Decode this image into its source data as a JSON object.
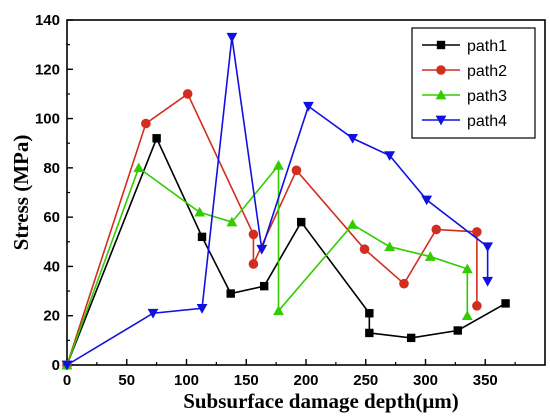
{
  "chart_data": {
    "type": "line",
    "title": "",
    "xlabel": "Subsurface damage depth(μm)",
    "ylabel": "Stress (MPa)",
    "xlim": [
      0,
      400
    ],
    "ylim": [
      0,
      140
    ],
    "xticks": [
      0,
      50,
      100,
      150,
      200,
      250,
      300,
      350
    ],
    "yticks": [
      0,
      20,
      40,
      60,
      80,
      100,
      120,
      140
    ],
    "grid": false,
    "legend_position": "top-right",
    "series": [
      {
        "name": "path1",
        "color": "#000000",
        "marker": "square",
        "points": [
          [
            0,
            0
          ],
          [
            75,
            92
          ],
          [
            113,
            52
          ],
          [
            137,
            29
          ],
          [
            165,
            32
          ],
          [
            196,
            58
          ],
          [
            253,
            21
          ],
          [
            253,
            13
          ],
          [
            288,
            11
          ],
          [
            327,
            14
          ],
          [
            367,
            25
          ]
        ]
      },
      {
        "name": "path2",
        "color": "#d22d1e",
        "marker": "circle",
        "points": [
          [
            0,
            0
          ],
          [
            66,
            98
          ],
          [
            101,
            110
          ],
          [
            156,
            53
          ],
          [
            156,
            41
          ],
          [
            192,
            79
          ],
          [
            249,
            47
          ],
          [
            282,
            33
          ],
          [
            309,
            55
          ],
          [
            343,
            54
          ],
          [
            343,
            24
          ]
        ]
      },
      {
        "name": "path3",
        "color": "#33cc00",
        "marker": "triangle-up",
        "points": [
          [
            0,
            0
          ],
          [
            60,
            80
          ],
          [
            111,
            62
          ],
          [
            138,
            58
          ],
          [
            177,
            81
          ],
          [
            177,
            22
          ],
          [
            239,
            57
          ],
          [
            270,
            48
          ],
          [
            304,
            44
          ],
          [
            335,
            39
          ],
          [
            335,
            20
          ]
        ]
      },
      {
        "name": "path4",
        "color": "#1010e0",
        "marker": "triangle-down",
        "points": [
          [
            0,
            0
          ],
          [
            72,
            21
          ],
          [
            113,
            23
          ],
          [
            138,
            133
          ],
          [
            163,
            47
          ],
          [
            202,
            105
          ],
          [
            239,
            92
          ],
          [
            270,
            85
          ],
          [
            301,
            67
          ],
          [
            352,
            48
          ],
          [
            352,
            34
          ]
        ]
      }
    ]
  }
}
